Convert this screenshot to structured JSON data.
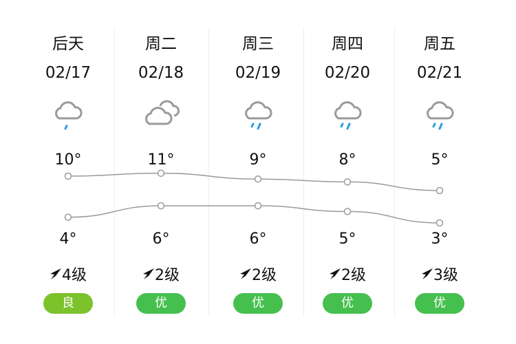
{
  "days": [
    {
      "day": "后天",
      "date": "02/17",
      "icon": "light-rain-icon",
      "high": "10°",
      "low": "4°",
      "wind": "4级",
      "aqi": "良",
      "aqi_color": "#7cc22b",
      "high_val": 10,
      "low_val": 4
    },
    {
      "day": "周二",
      "date": "02/18",
      "icon": "cloudy-icon",
      "high": "11°",
      "low": "6°",
      "wind": "2级",
      "aqi": "优",
      "aqi_color": "#45c04f",
      "high_val": 11,
      "low_val": 6
    },
    {
      "day": "周三",
      "date": "02/19",
      "icon": "rain-icon",
      "high": "9°",
      "low": "6°",
      "wind": "2级",
      "aqi": "优",
      "aqi_color": "#45c04f",
      "high_val": 9,
      "low_val": 6
    },
    {
      "day": "周四",
      "date": "02/20",
      "icon": "rain-icon",
      "high": "8°",
      "low": "5°",
      "wind": "2级",
      "aqi": "优",
      "aqi_color": "#45c04f",
      "high_val": 8,
      "low_val": 5
    },
    {
      "day": "周五",
      "date": "02/21",
      "icon": "rain-icon",
      "high": "5°",
      "low": "3°",
      "wind": "3级",
      "aqi": "优",
      "aqi_color": "#45c04f",
      "high_val": 5,
      "low_val": 3
    }
  ],
  "colors": {
    "cloud": "#9a9a9a",
    "rain": "#2a9be0",
    "line": "#999999"
  }
}
